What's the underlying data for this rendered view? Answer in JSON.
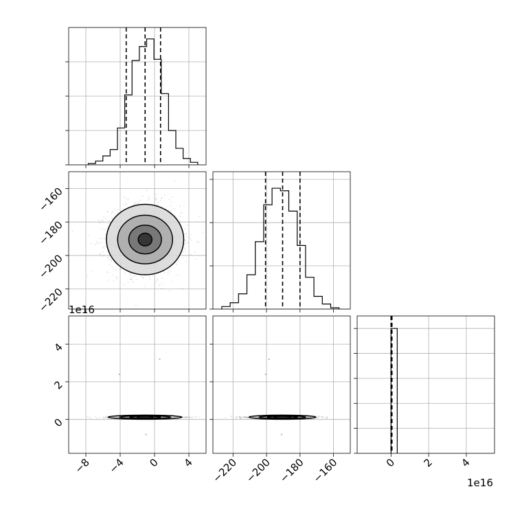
{
  "chart_data": {
    "type": "corner",
    "figure": {
      "background": "#ffffff",
      "frame_color": "#000000",
      "grid": true
    },
    "params": [
      {
        "index": 0,
        "range": [
          -10,
          6
        ],
        "ticks": [
          -8,
          -4,
          0,
          4
        ],
        "tick_labels": [
          "−8",
          "−4",
          "0",
          "4"
        ]
      },
      {
        "index": 1,
        "range": [
          -232,
          -150
        ],
        "ticks": [
          -220,
          -200,
          -180,
          -160
        ],
        "tick_labels": [
          "−220",
          "−200",
          "−180",
          "−160"
        ]
      },
      {
        "index": 2,
        "range": [
          -1.8e+16,
          5.5e+16
        ],
        "ticks": [
          0,
          2e+16,
          4e+16
        ],
        "tick_labels": [
          "0",
          "2",
          "4"
        ],
        "offset_text": "1e16"
      }
    ],
    "histograms": [
      {
        "param": 0,
        "bin_edges": [
          -7.72,
          -6.87,
          -6.02,
          -5.17,
          -4.32,
          -3.47,
          -2.62,
          -1.77,
          -0.92,
          -0.07,
          0.78,
          1.63,
          2.48,
          3.33,
          4.18,
          5.03
        ],
        "counts": [
          0.01,
          0.03,
          0.07,
          0.12,
          0.29,
          0.55,
          0.82,
          0.93,
          0.99,
          0.83,
          0.56,
          0.27,
          0.13,
          0.05,
          0.02
        ],
        "quantiles": [
          -3.3,
          -1.1,
          0.7
        ],
        "ylim": [
          0,
          1.08
        ],
        "yticks": [
          0,
          0.27,
          0.54,
          0.81
        ]
      },
      {
        "param": 1,
        "bin_edges": [
          -226.7,
          -221.7,
          -216.7,
          -211.7,
          -206.7,
          -201.7,
          -196.7,
          -191.7,
          -186.7,
          -181.7,
          -176.7,
          -171.7,
          -166.7,
          -161.7,
          -156.7
        ],
        "counts": [
          0.02,
          0.05,
          0.12,
          0.27,
          0.53,
          0.82,
          0.95,
          0.93,
          0.77,
          0.5,
          0.25,
          0.1,
          0.04,
          0.01
        ],
        "quantiles": [
          -200.6,
          -190.4,
          -180.0
        ],
        "ylim": [
          0,
          1.08
        ],
        "yticks": [
          0,
          0.34,
          0.68,
          1.02
        ]
      },
      {
        "param": 2,
        "bin_edges": [
          0,
          3300000000000000.0
        ],
        "counts": [
          1.0
        ],
        "quantiles": [
          0,
          0,
          500000000000000.0
        ],
        "ylim": [
          0,
          1.1
        ],
        "yticks": [
          0,
          0.2,
          0.4,
          0.6,
          0.8,
          1.0
        ]
      }
    ],
    "scatter_panels": [
      {
        "x_param": 0,
        "y_param": 1,
        "center": [
          -1.1,
          -190.5
        ],
        "spread": [
          2.1,
          10.2
        ],
        "contour_levels": [
          {
            "rx": 0.8,
            "ry": 3.8
          },
          {
            "rx": 1.9,
            "ry": 8.6
          },
          {
            "rx": 3.2,
            "ry": 14.5
          },
          {
            "rx": 4.5,
            "ry": 21.0
          }
        ]
      },
      {
        "x_param": 0,
        "y_param": 2,
        "center": [
          -1.1,
          1200000000000000.0
        ],
        "spread": [
          2.1,
          300000000000000.0
        ],
        "contour_levels": [
          {
            "rx": 0.9,
            "ry": 250000000000000.0
          },
          {
            "rx": 1.8,
            "ry": 450000000000000.0
          },
          {
            "rx": 3.0,
            "ry": 750000000000000.0
          },
          {
            "rx": 4.3,
            "ry": 1100000000000000.0
          }
        ],
        "outliers": [
          [
            -4.1,
            2.4e+16
          ],
          [
            0.6,
            3.2e+16
          ],
          [
            -1.0,
            -8000000000000000.0
          ]
        ]
      },
      {
        "x_param": 1,
        "y_param": 2,
        "center": [
          -190.5,
          1200000000000000.0
        ],
        "spread": [
          10.2,
          300000000000000.0
        ],
        "contour_levels": [
          {
            "rx": 5,
            "ry": 250000000000000.0
          },
          {
            "rx": 9,
            "ry": 450000000000000.0
          },
          {
            "rx": 14,
            "ry": 750000000000000.0
          },
          {
            "rx": 20,
            "ry": 1100000000000000.0
          }
        ],
        "outliers": [
          [
            -200.5,
            2.4e+16
          ],
          [
            -198.5,
            3.2e+16
          ],
          [
            -191.0,
            -8000000000000000.0
          ]
        ]
      }
    ]
  }
}
